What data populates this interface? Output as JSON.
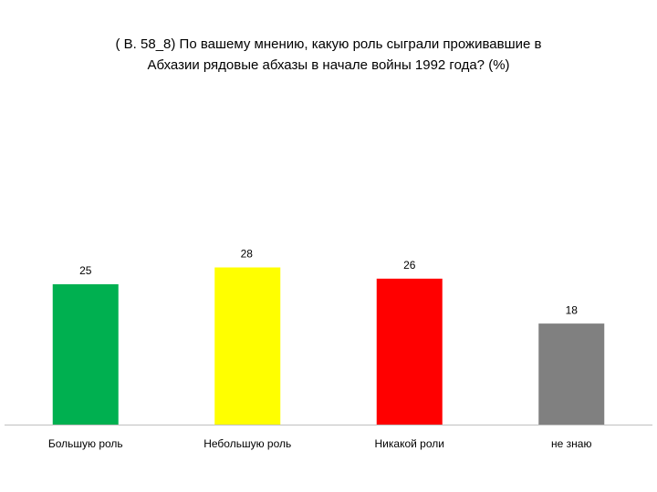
{
  "chart_data": {
    "type": "bar",
    "title": [
      "( В. 58_8)  По вашему мнению, какую роль сыграли проживавшие в",
      "Абхазии рядовые абхазы в начале войны 1992 года? (%)"
    ],
    "categories": [
      "Большую роль",
      "Небольшую роль",
      "Никакой роли",
      "не знаю"
    ],
    "values": [
      25,
      28,
      26,
      18
    ],
    "colors": [
      "#00b050",
      "#ffff00",
      "#ff0000",
      "#808080"
    ]
  }
}
